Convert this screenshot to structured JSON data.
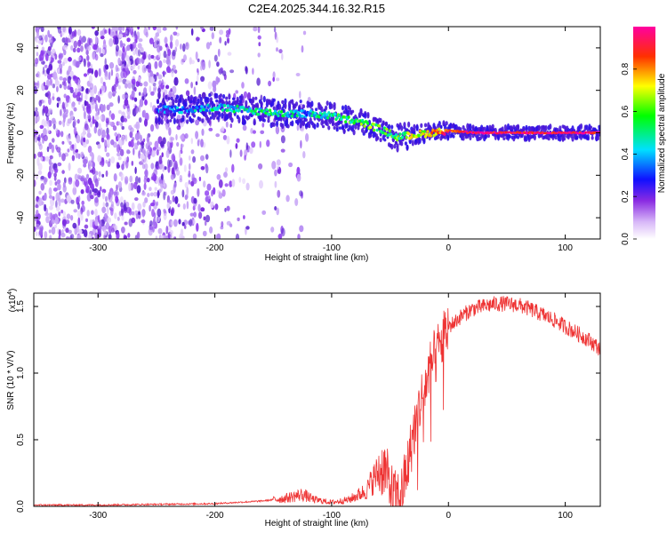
{
  "title": "C2E4.2025.344.16.32.R15",
  "colors": {
    "spectrogram_noise": "#7a2be0",
    "snr_line": "#ee3333",
    "frame": "#000000"
  },
  "chart_data": [
    {
      "type": "heatmap",
      "xlabel": "Height of straight line (km)",
      "ylabel": "Frequency (Hz)",
      "xlim": [
        -355,
        130
      ],
      "ylim": [
        -50,
        50
      ],
      "xticks": [
        "-300",
        "-200",
        "-100",
        "0",
        "100"
      ],
      "yticks": [
        "40",
        "20",
        "0",
        "-20",
        "-40"
      ],
      "colorbar": {
        "label": "Normalized spectral amplitude",
        "range": [
          0,
          1
        ],
        "ticks": [
          "0.0",
          "0.2",
          "0.4",
          "0.6",
          "0.8"
        ],
        "colormap": "rainbow (white-purple-blue-cyan-green-yellow-red-magenta)"
      },
      "signal_track": {
        "heights_km": [
          -250,
          -220,
          -200,
          -180,
          -160,
          -140,
          -120,
          -100,
          -85,
          -70,
          -55,
          -45,
          -30,
          -15,
          0,
          20,
          50,
          100,
          130
        ],
        "frequency_hz": [
          11,
          11,
          12,
          11,
          10,
          9,
          9,
          8,
          6,
          4,
          1,
          -2,
          -1,
          0,
          1,
          0,
          0,
          0,
          0
        ],
        "amplitude": [
          0.3,
          0.35,
          0.45,
          0.45,
          0.5,
          0.45,
          0.4,
          0.5,
          0.55,
          0.6,
          0.6,
          0.55,
          0.65,
          0.75,
          0.9,
          0.95,
          0.95,
          0.95,
          0.95
        ]
      }
    },
    {
      "type": "line",
      "xlabel": "Height of straight line (km)",
      "ylabel": "SNR (10 * V/V)",
      "y_multiplier": "(x10^4)",
      "y_multiplier_base": "(x10",
      "y_multiplier_exp": "4",
      "xlim": [
        -355,
        130
      ],
      "ylim": [
        0,
        1.6
      ],
      "xticks": [
        "-300",
        "-200",
        "-100",
        "0",
        "100"
      ],
      "yticks": [
        "0.0",
        "0.5",
        "1.0",
        "1.5"
      ],
      "series": [
        {
          "name": "SNR",
          "x": [
            -355,
            -300,
            -250,
            -200,
            -160,
            -140,
            -125,
            -115,
            -100,
            -85,
            -70,
            -65,
            -55,
            -50,
            -45,
            -40,
            -35,
            -30,
            -25,
            -20,
            -15,
            -10,
            -5,
            0,
            5,
            10,
            20,
            30,
            40,
            50,
            60,
            70,
            80,
            90,
            100,
            110,
            120,
            130
          ],
          "values": [
            0.01,
            0.01,
            0.015,
            0.02,
            0.04,
            0.06,
            0.09,
            0.05,
            0.03,
            0.05,
            0.12,
            0.2,
            0.3,
            0.14,
            0.05,
            0.1,
            0.3,
            0.55,
            0.75,
            0.9,
            1.05,
            1.15,
            1.25,
            1.35,
            1.38,
            1.42,
            1.48,
            1.5,
            1.52,
            1.52,
            1.51,
            1.48,
            1.44,
            1.4,
            1.35,
            1.3,
            1.25,
            1.18
          ]
        }
      ]
    }
  ]
}
